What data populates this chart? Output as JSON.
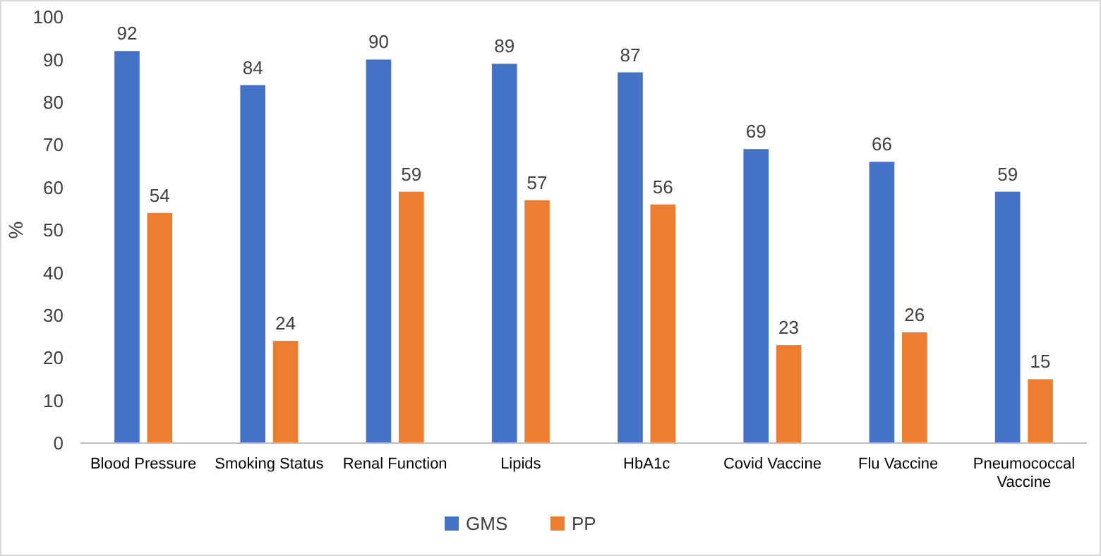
{
  "chart_data": {
    "type": "bar",
    "ylabel": "%",
    "categories": [
      "Blood Pressure",
      "Smoking Status",
      "Renal Function",
      "Lipids",
      "HbA1c",
      "Covid Vaccine",
      "Flu Vaccine",
      "Pneumococcal Vaccine"
    ],
    "series": [
      {
        "name": "GMS",
        "color": "#4472c4",
        "values": [
          92,
          84,
          90,
          89,
          87,
          69,
          66,
          59
        ]
      },
      {
        "name": "PP",
        "color": "#ed7d31",
        "values": [
          54,
          24,
          59,
          57,
          56,
          23,
          26,
          15
        ]
      }
    ],
    "ylim": [
      0,
      100
    ],
    "yticks": [
      0,
      10,
      20,
      30,
      40,
      50,
      60,
      70,
      80,
      90,
      100
    ],
    "data_labels": true,
    "grid": false,
    "legend": "bottom"
  }
}
